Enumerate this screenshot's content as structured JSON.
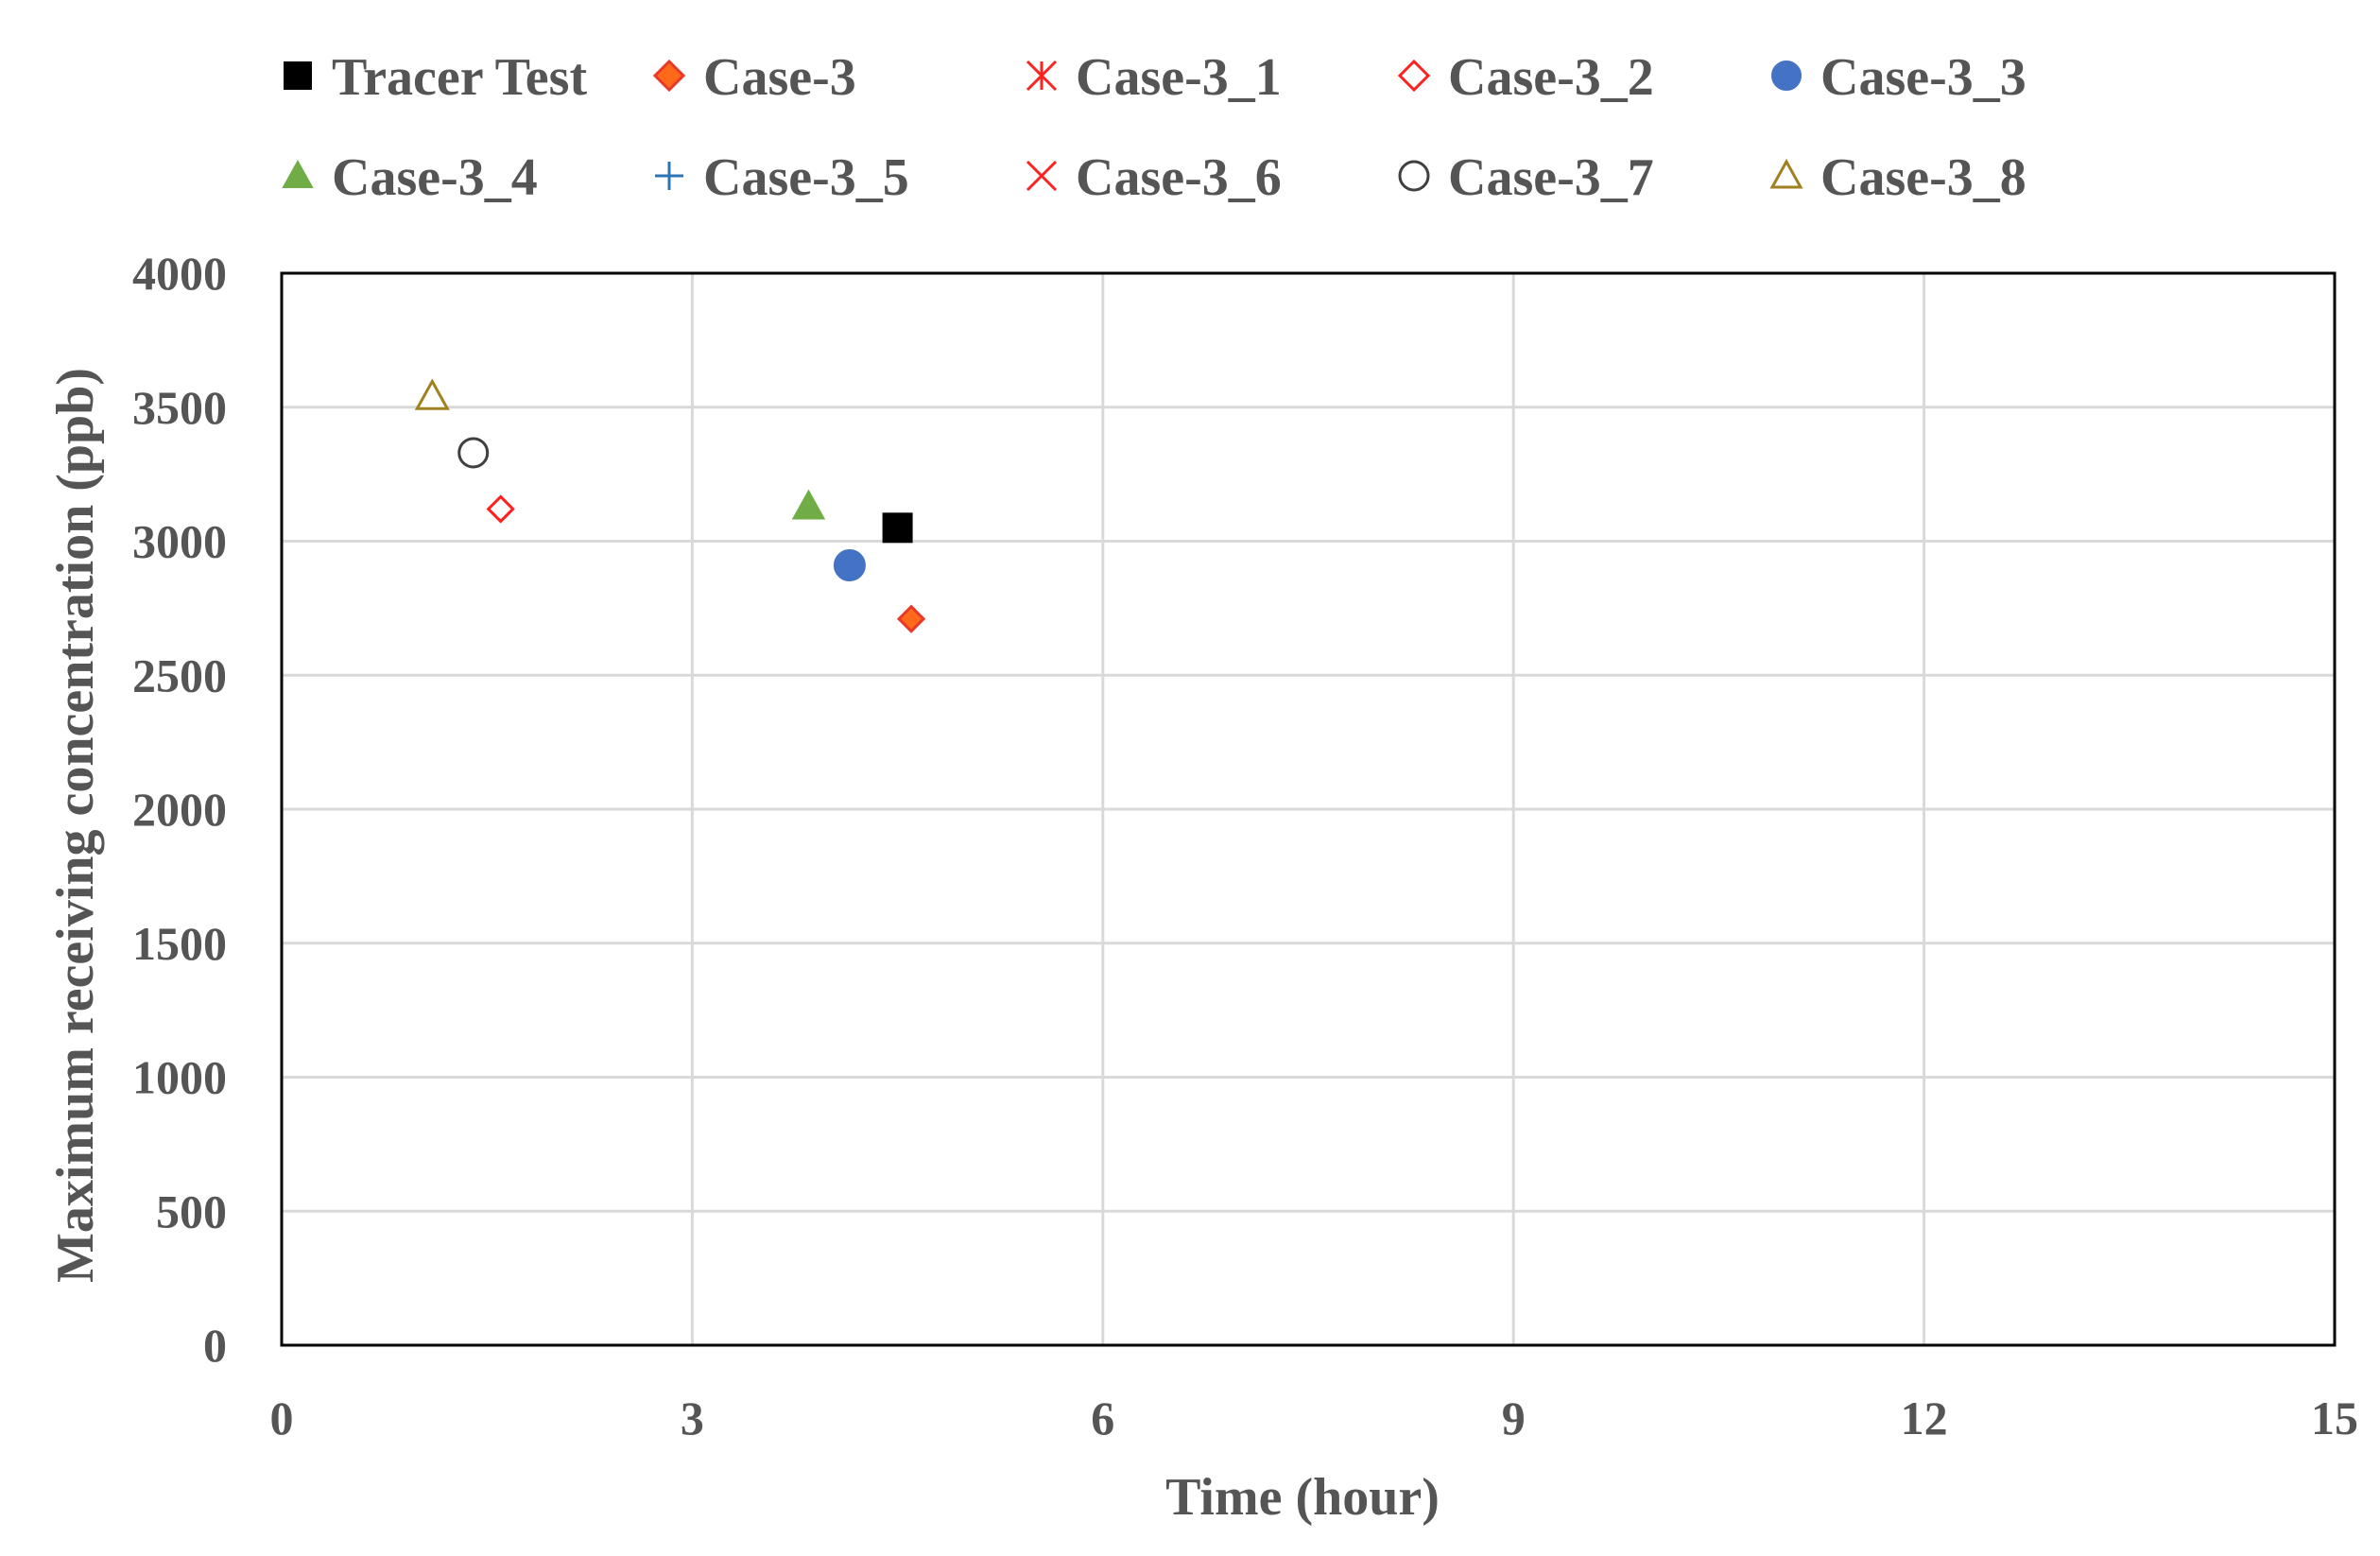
{
  "chart_data": {
    "type": "scatter",
    "title": "",
    "xlabel": "Time (hour)",
    "ylabel": "Maximum receiving concentration (ppb)",
    "xlim": [
      0,
      15
    ],
    "ylim": [
      0,
      4000
    ],
    "x_ticks": [
      0,
      3,
      6,
      9,
      12,
      15
    ],
    "y_ticks": [
      0,
      500,
      1000,
      1500,
      2000,
      2500,
      3000,
      3500,
      4000
    ],
    "grid": true,
    "legend_position": "top",
    "series": [
      {
        "name": "Tracer Test",
        "marker": "square",
        "color": "#000000",
        "fill": "#000000",
        "points": [
          [
            4.5,
            3050
          ]
        ]
      },
      {
        "name": "Case-3",
        "marker": "diamond",
        "color": "#e8382a",
        "fill": "#ff6a1a",
        "points": [
          [
            4.6,
            2710
          ]
        ]
      },
      {
        "name": "Case-3_1",
        "marker": "asterisk",
        "color": "#ff2020",
        "fill": "none",
        "points": []
      },
      {
        "name": "Case-3_2",
        "marker": "diamond-open",
        "color": "#ff2020",
        "fill": "none",
        "points": [
          [
            1.6,
            3120
          ]
        ]
      },
      {
        "name": "Case-3_3",
        "marker": "circle",
        "color": "#4472c4",
        "fill": "#4472c4",
        "points": [
          [
            4.15,
            2910
          ]
        ]
      },
      {
        "name": "Case-3_4",
        "marker": "triangle",
        "color": "#70ad47",
        "fill": "#70ad47",
        "points": [
          [
            3.85,
            3130
          ]
        ]
      },
      {
        "name": "Case-3_5",
        "marker": "plus",
        "color": "#2e75b6",
        "fill": "none",
        "points": []
      },
      {
        "name": "Case-3_6",
        "marker": "x",
        "color": "#ff2020",
        "fill": "none",
        "points": []
      },
      {
        "name": "Case-3_7",
        "marker": "circle-open",
        "color": "#404040",
        "fill": "none",
        "points": [
          [
            1.4,
            3330
          ]
        ]
      },
      {
        "name": "Case-3_8",
        "marker": "triangle-open",
        "color": "#a08020",
        "fill": "none",
        "points": [
          [
            1.1,
            3540
          ]
        ]
      }
    ]
  }
}
